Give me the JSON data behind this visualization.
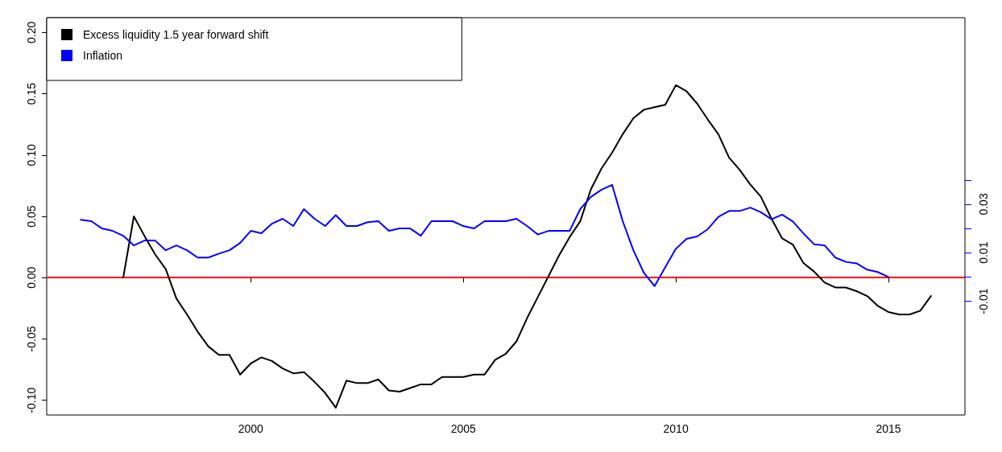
{
  "chart_data": {
    "type": "line",
    "legend": "top left",
    "grid": false,
    "marker": "none",
    "line_style": "solid",
    "xlim": [
      1995.2,
      2016.8
    ],
    "xticks": [
      2000,
      2005,
      2010,
      2015
    ],
    "ylim": [
      -0.112,
      0.212
    ],
    "yticks": [
      {
        "value": -0.1,
        "label": "-0.10"
      },
      {
        "value": -0.05,
        "label": "-0.05"
      },
      {
        "value": 0,
        "label": "0.00"
      },
      {
        "value": 0.05,
        "label": "0.05"
      },
      {
        "value": 0.1,
        "label": "0.10"
      },
      {
        "value": 0.15,
        "label": "0.15"
      },
      {
        "value": 0.2,
        "label": "0.20"
      }
    ],
    "y2lim": [
      -0.057,
      0.107
    ],
    "y2ticks": [
      -0.01,
      {
        "value": 0,
        "label": null
      },
      0.01,
      {
        "value": 0.02,
        "label": null
      },
      0.03,
      {
        "value": 0.04,
        "label": null
      }
    ],
    "ref_lines": [
      {
        "axis": "y",
        "value": 0,
        "color": "#ff0000"
      }
    ],
    "series": [
      {
        "name": "Excess liquidity 1.5 year forward shift",
        "color": "#000000",
        "x": [
          1997,
          1997.25,
          1997.5,
          1997.75,
          1998,
          1998.25,
          1998.5,
          1998.75,
          1999,
          1999.25,
          1999.5,
          1999.75,
          2000,
          2000.25,
          2000.5,
          2000.75,
          2001,
          2001.25,
          2001.5,
          2001.75,
          2002,
          2002.25,
          2002.5,
          2002.75,
          2003,
          2003.25,
          2003.5,
          2003.75,
          2004,
          2004.25,
          2004.5,
          2005,
          2005.25,
          2005.5,
          2005.75,
          2006,
          2006.25,
          2006.5,
          2006.75,
          2007,
          2007.25,
          2007.5,
          2007.75,
          2008,
          2008.25,
          2008.5,
          2008.75,
          2009,
          2009.25,
          2009.5,
          2009.75,
          2010,
          2010.25,
          2010.5,
          2010.75,
          2011,
          2011.25,
          2011.5,
          2011.75,
          2012,
          2012.25,
          2012.5,
          2012.75,
          2013,
          2013.25,
          2013.5,
          2013.75,
          2014,
          2014.25,
          2014.5,
          2014.75,
          2015,
          2015.25,
          2015.5,
          2015.75,
          2016
        ],
        "values": [
          0,
          0.05,
          0.034,
          0.019,
          0.007,
          -0.017,
          -0.03,
          -0.044,
          -0.056,
          -0.063,
          -0.063,
          -0.079,
          -0.07,
          -0.065,
          -0.068,
          -0.074,
          -0.078,
          -0.077,
          -0.085,
          -0.094,
          -0.106,
          -0.084,
          -0.086,
          -0.086,
          -0.083,
          -0.092,
          -0.093,
          -0.09,
          -0.087,
          -0.087,
          -0.081,
          -0.081,
          -0.079,
          -0.079,
          -0.067,
          -0.062,
          -0.052,
          -0.033,
          -0.016,
          0.001,
          0.018,
          0.033,
          0.046,
          0.072,
          0.089,
          0.102,
          0.117,
          0.13,
          0.137,
          0.139,
          0.141,
          0.157,
          0.152,
          0.142,
          0.129,
          0.117,
          0.098,
          0.088,
          0.076,
          0.066,
          0.048,
          0.032,
          0.027,
          0.012,
          0.005,
          -0.004,
          -0.008,
          -0.008,
          -0.011,
          -0.015,
          -0.023,
          -0.028,
          -0.03,
          -0.03,
          -0.027,
          -0.015
        ]
      },
      {
        "name": "Inflation",
        "color": "#0000ff",
        "axis": "y2",
        "x": [
          1996,
          1996.25,
          1996.5,
          1996.75,
          1997,
          1997.25,
          1997.5,
          1997.75,
          1998,
          1998.25,
          1998.5,
          1998.75,
          1999,
          1999.25,
          1999.5,
          1999.75,
          2000,
          2000.25,
          2000.5,
          2000.75,
          2001,
          2001.25,
          2001.5,
          2001.75,
          2002,
          2002.25,
          2002.5,
          2002.75,
          2003,
          2003.25,
          2003.5,
          2003.75,
          2004,
          2004.25,
          2004.5,
          2004.75,
          2005,
          2005.25,
          2005.5,
          2005.75,
          2006,
          2006.25,
          2006.5,
          2006.75,
          2007,
          2007.25,
          2007.5,
          2007.75,
          2008,
          2008.25,
          2008.5,
          2008.75,
          2009,
          2009.25,
          2009.5,
          2009.75,
          2010,
          2010.25,
          2010.5,
          2010.75,
          2011,
          2011.25,
          2011.5,
          2011.75,
          2012,
          2012.25,
          2012.5,
          2012.75,
          2013,
          2013.25,
          2013.5,
          2013.75,
          2014,
          2014.25,
          2014.5,
          2014.75,
          2015
        ],
        "values": [
          0.0236,
          0.023,
          0.02,
          0.019,
          0.017,
          0.013,
          0.015,
          0.015,
          0.011,
          0.013,
          0.011,
          0.008,
          0.008,
          0.0096,
          0.011,
          0.014,
          0.019,
          0.018,
          0.022,
          0.024,
          0.021,
          0.028,
          0.024,
          0.021,
          0.0255,
          0.021,
          0.021,
          0.0226,
          0.023,
          0.019,
          0.02,
          0.02,
          0.017,
          0.023,
          0.023,
          0.023,
          0.021,
          0.02,
          0.023,
          0.023,
          0.023,
          0.024,
          0.021,
          0.0175,
          0.019,
          0.019,
          0.019,
          0.028,
          0.033,
          0.036,
          0.038,
          0.023,
          0.011,
          0.0016,
          -0.0038,
          0.004,
          0.0116,
          0.0157,
          0.0167,
          0.0197,
          0.0248,
          0.0272,
          0.0272,
          0.0286,
          0.0267,
          0.0238,
          0.0257,
          0.0229,
          0.018,
          0.0135,
          0.013,
          0.008,
          0.0062,
          0.0056,
          0.003,
          0.002,
          0
        ]
      }
    ]
  }
}
